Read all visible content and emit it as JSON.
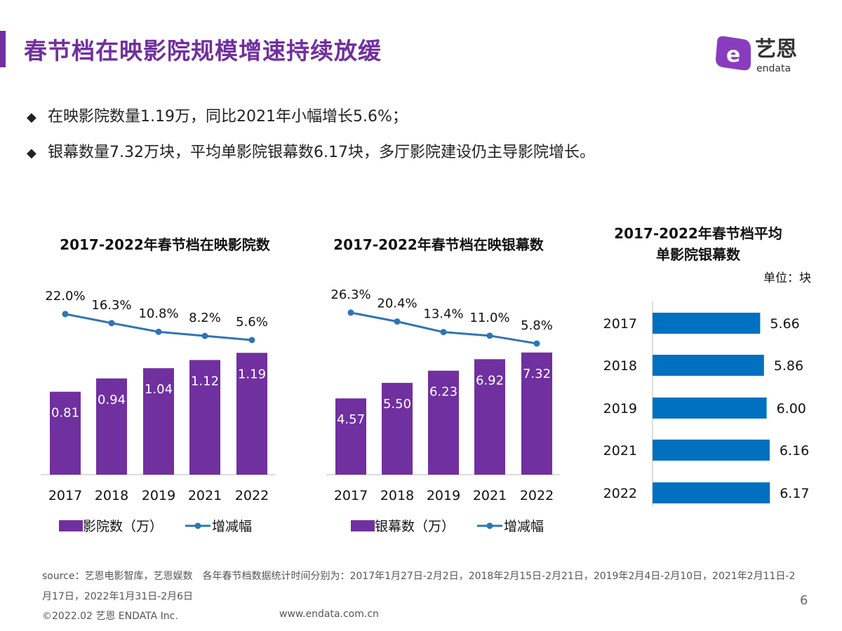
{
  "header": {
    "title": "春节档在映影院规模增速持续放缓",
    "logo_text": "艺恩",
    "logo_sub": "endata"
  },
  "bullets": [
    "在映影院数量1.19万，同比2021年小幅增长5.6%；",
    "银幕数量7.32万块，平均单影院银幕数6.17块，多厅影院建设仍主导影院增长。"
  ],
  "colors": {
    "accent": "#7030a0",
    "bar": "#7030a0",
    "line": "#2e75b6",
    "hbar": "#0070c0"
  },
  "chart_data": [
    {
      "type": "bar+line",
      "title": "2017-2022年春节档在映影院数",
      "categories": [
        "2017",
        "2018",
        "2019",
        "2021",
        "2022"
      ],
      "series": [
        {
          "name": "影院数（万）",
          "type": "bar",
          "values": [
            0.81,
            0.94,
            1.04,
            1.12,
            1.19
          ],
          "labels": [
            "0.81",
            "0.94",
            "1.04",
            "1.12",
            "1.19"
          ]
        },
        {
          "name": "增减幅",
          "type": "line",
          "values": [
            22.0,
            16.3,
            10.8,
            8.2,
            5.6
          ],
          "labels": [
            "22.0%",
            "16.3%",
            "10.8%",
            "8.2%",
            "5.6%"
          ]
        }
      ],
      "legend": "bottom"
    },
    {
      "type": "bar+line",
      "title": "2017-2022年春节档在映银幕数",
      "categories": [
        "2017",
        "2018",
        "2019",
        "2021",
        "2022"
      ],
      "series": [
        {
          "name": "银幕数（万）",
          "type": "bar",
          "values": [
            4.57,
            5.5,
            6.23,
            6.92,
            7.32
          ],
          "labels": [
            "4.57",
            "5.50",
            "6.23",
            "6.92",
            "7.32"
          ]
        },
        {
          "name": "增减幅",
          "type": "line",
          "values": [
            26.3,
            20.4,
            13.4,
            11.0,
            5.8
          ],
          "labels": [
            "26.3%",
            "20.4%",
            "13.4%",
            "11.0%",
            "5.8%"
          ]
        }
      ],
      "legend": "bottom"
    },
    {
      "type": "hbar",
      "title_lines": [
        "2017-2022年春节档平均",
        "单影院银幕数"
      ],
      "unit": "单位：块",
      "categories": [
        "2017",
        "2018",
        "2019",
        "2021",
        "2022"
      ],
      "values": [
        5.66,
        5.86,
        6.0,
        6.16,
        6.17
      ],
      "labels": [
        "5.66",
        "5.86",
        "6.00",
        "6.16",
        "6.17"
      ]
    }
  ],
  "footer": {
    "source": "source：艺恩电影智库，艺恩娱数　各年春节档数据统计时间分别为：2017年1月27日-2月2日，2018年2月15日-2月21日，2019年2月4日-2月10日，2021年2月11日-2月17日，2022年1月31日-2月6日",
    "copyright": "©2022.02 艺恩 ENDATA Inc.",
    "website": "www.endata.com.cn",
    "page": "6"
  }
}
